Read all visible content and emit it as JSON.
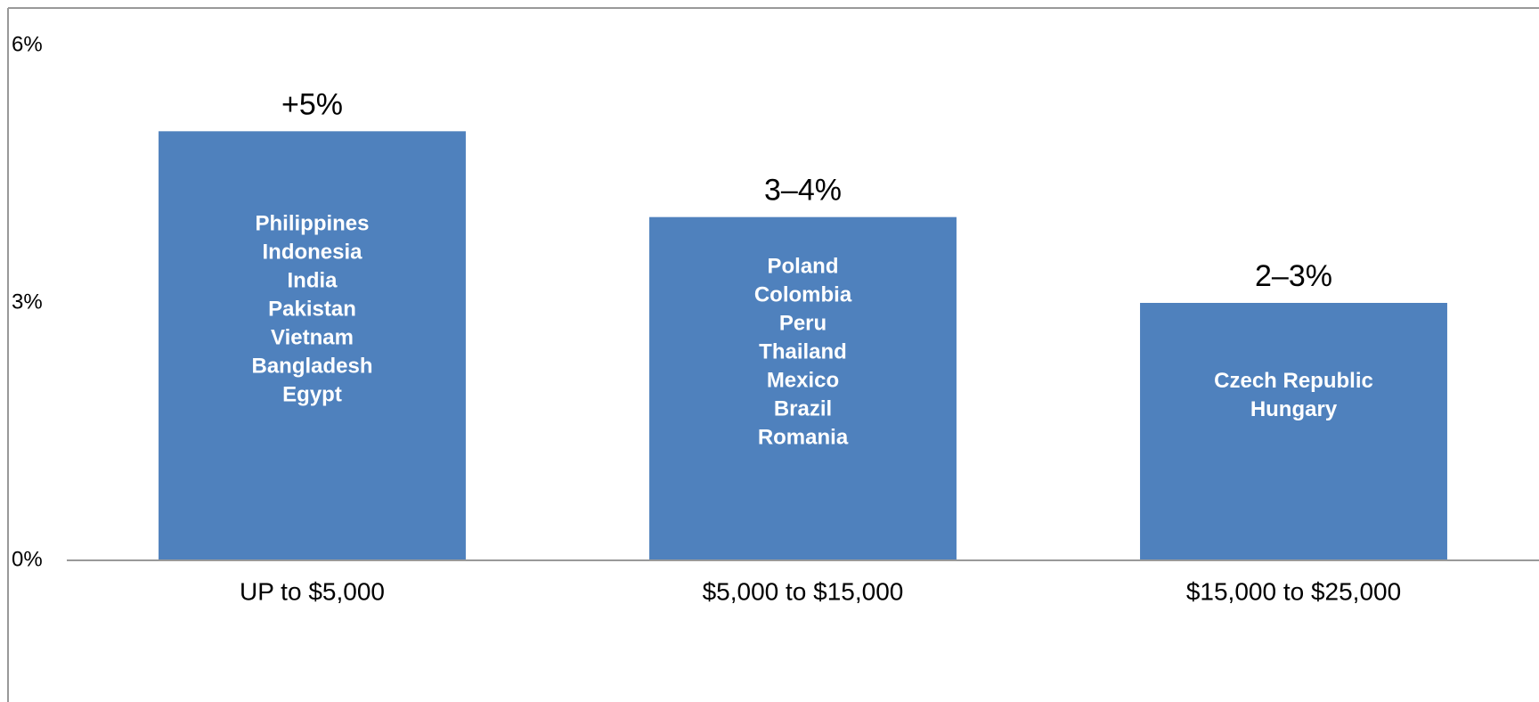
{
  "chart_data": {
    "type": "bar",
    "categories": [
      "UP to $5,000",
      "$5,000 to $15,000",
      "$15,000 to $25,000"
    ],
    "values": [
      5,
      4,
      3
    ],
    "value_labels": [
      "+5%",
      "3–4%",
      "2–3%"
    ],
    "bar_annotations": [
      [
        "Philippines",
        "Indonesia",
        "India",
        "Pakistan",
        "Vietnam",
        "Bangladesh",
        "Egypt"
      ],
      [
        "Poland",
        "Colombia",
        "Peru",
        "Thailand",
        "Mexico",
        "Brazil",
        "Romania"
      ],
      [
        "Czech Republic",
        "Hungary"
      ]
    ],
    "color": "#4f81bd",
    "ylim": [
      0,
      6
    ],
    "yticks": [
      {
        "value": 0,
        "label": "0%"
      },
      {
        "value": 3,
        "label": "3%"
      },
      {
        "value": 6,
        "label": "6%"
      }
    ],
    "grid": false
  }
}
